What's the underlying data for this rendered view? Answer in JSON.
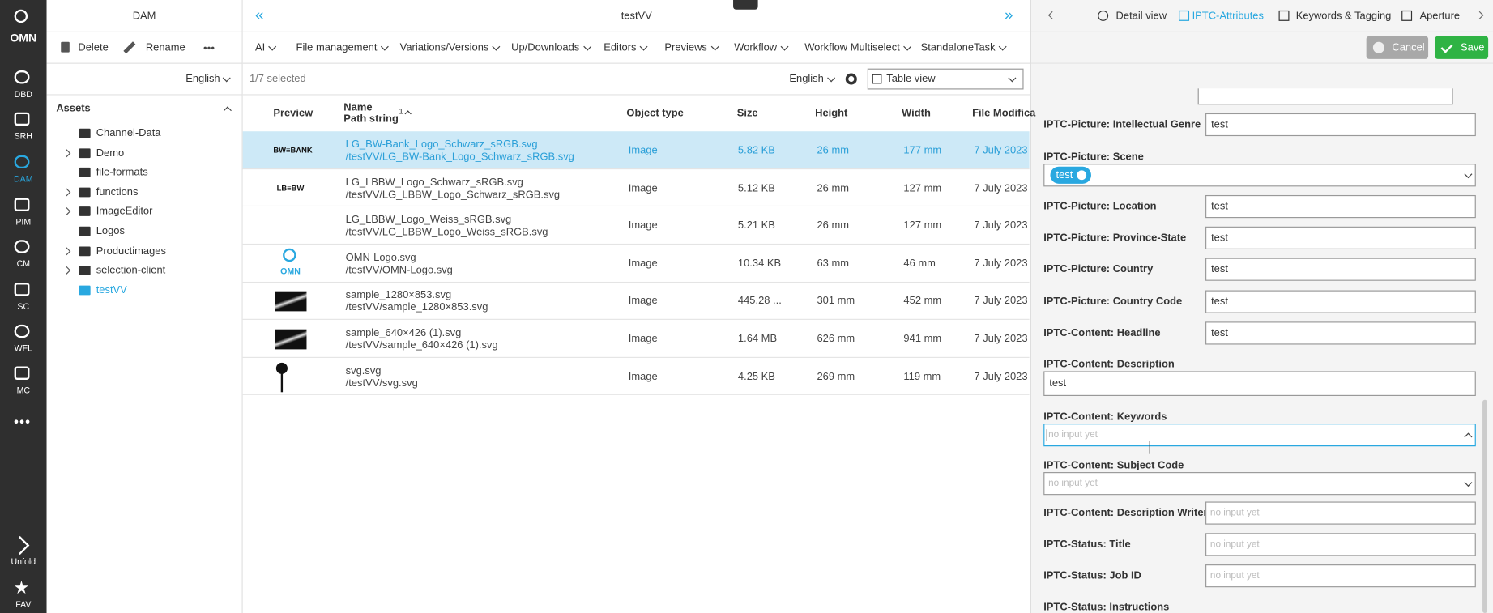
{
  "sidebar": {
    "logo": "OMN",
    "items": [
      "DBD",
      "SRH",
      "DAM",
      "PIM",
      "CM",
      "SC",
      "WFL",
      "MC"
    ],
    "unfold": "Unfold",
    "fav": "FAV"
  },
  "left_panel": {
    "title": "DAM",
    "actions": [
      "Delete",
      "Rename"
    ],
    "language": "English",
    "tree_title": "Assets",
    "tree": [
      {
        "label": "Channel-Data",
        "expandable": false
      },
      {
        "label": "Demo",
        "expandable": true
      },
      {
        "label": "file-formats",
        "expandable": false
      },
      {
        "label": "functions",
        "expandable": true
      },
      {
        "label": "ImageEditor",
        "expandable": true
      },
      {
        "label": "Logos",
        "expandable": false
      },
      {
        "label": "Productimages",
        "expandable": true
      },
      {
        "label": "selection-client",
        "expandable": true
      },
      {
        "label": "testVV",
        "expandable": false,
        "active": true
      }
    ]
  },
  "main": {
    "title": "testVV",
    "menu": [
      "AI",
      "File management",
      "Variations/Versions",
      "Up/Downloads",
      "Editors",
      "Previews",
      "Workflow",
      "Workflow Multiselect",
      "StandaloneTask"
    ],
    "selection": "1/7 selected",
    "language": "English",
    "view": "Table view",
    "columns": {
      "preview": "Preview",
      "name": "Name",
      "path": "Path string",
      "sort": "1",
      "type": "Object type",
      "size": "Size",
      "height": "Height",
      "width": "Width",
      "modified": "File Modifica"
    },
    "rows": [
      {
        "preview": "BW≡BANK",
        "name": "LG_BW-Bank_Logo_Schwarz_sRGB.svg",
        "path": "/testVV/LG_BW-Bank_Logo_Schwarz_sRGB.svg",
        "type": "Image",
        "size": "5.82 KB",
        "height": "26 mm",
        "width": "177 mm",
        "modified": "7 July 2023",
        "selected": true
      },
      {
        "preview": "LB≡BW",
        "name": "LG_LBBW_Logo_Schwarz_sRGB.svg",
        "path": "/testVV/LG_LBBW_Logo_Schwarz_sRGB.svg",
        "type": "Image",
        "size": "5.12 KB",
        "height": "26 mm",
        "width": "127 mm",
        "modified": "7 July 2023",
        "selected": false
      },
      {
        "preview": null,
        "name": "LG_LBBW_Logo_Weiss_sRGB.svg",
        "path": "/testVV/LG_LBBW_Logo_Weiss_sRGB.svg",
        "type": "Image",
        "size": "5.21 KB",
        "height": "26 mm",
        "width": "127 mm",
        "modified": "7 July 2023",
        "selected": false
      },
      {
        "preview": "OMN",
        "name": "OMN-Logo.svg",
        "path": "/testVV/OMN-Logo.svg",
        "type": "Image",
        "size": "10.34 KB",
        "height": "63 mm",
        "width": "46 mm",
        "modified": "7 July 2023",
        "selected": false
      },
      {
        "preview": null,
        "name": "sample_1280×853.svg",
        "path": "/testVV/sample_1280×853.svg",
        "type": "Image",
        "size": "445.28 ...",
        "height": "301 mm",
        "width": "452 mm",
        "modified": "7 July 2023",
        "selected": false
      },
      {
        "preview": null,
        "name": "sample_640×426 (1).svg",
        "path": "/testVV/sample_640×426 (1).svg",
        "type": "Image",
        "size": "1.64 MB",
        "height": "626 mm",
        "width": "941 mm",
        "modified": "7 July 2023",
        "selected": false
      },
      {
        "preview": null,
        "name": "svg.svg",
        "path": "/testVV/svg.svg",
        "type": "Image",
        "size": "4.25 KB",
        "height": "269 mm",
        "width": "119 mm",
        "modified": "7 July 2023",
        "selected": false
      }
    ]
  },
  "right_panel": {
    "tabs": [
      "Detail view",
      "IPTC-Attributes",
      "Keywords & Tagging",
      "Aperture"
    ],
    "active_tab": 1,
    "cancel": "Cancel",
    "save": "Save",
    "fields": [
      {
        "label": "IPTC-Picture: Intellectual Genre",
        "kind": "input",
        "value": "test"
      },
      {
        "label": "IPTC-Picture: Scene",
        "kind": "chips",
        "value": "test"
      },
      {
        "label": "IPTC-Picture: Location",
        "kind": "input",
        "value": "test"
      },
      {
        "label": "IPTC-Picture: Province-State",
        "kind": "input",
        "value": "test"
      },
      {
        "label": "IPTC-Picture: Country",
        "kind": "input",
        "value": "test"
      },
      {
        "label": "IPTC-Picture: Country Code",
        "kind": "input",
        "value": "test"
      },
      {
        "label": "IPTC-Content: Headline",
        "kind": "input",
        "value": "test"
      },
      {
        "label": "IPTC-Content: Description",
        "kind": "textarea",
        "value": "test"
      },
      {
        "label": "IPTC-Content: Keywords",
        "kind": "select-open",
        "placeholder": "no input yet"
      },
      {
        "label": "IPTC-Content: Subject Code",
        "kind": "select",
        "placeholder": "no input yet"
      },
      {
        "label": "IPTC-Content: Description Writer",
        "kind": "input",
        "placeholder": "no input yet"
      },
      {
        "label": "IPTC-Status: Title",
        "kind": "input",
        "placeholder": "no input yet"
      },
      {
        "label": "IPTC-Status: Job ID",
        "kind": "input",
        "placeholder": "no input yet"
      },
      {
        "label": "IPTC-Status: Instructions",
        "kind": "label"
      }
    ]
  }
}
